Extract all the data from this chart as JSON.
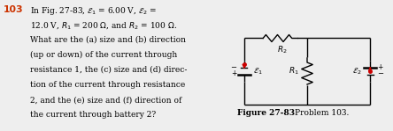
{
  "bg_color": "#eeeeee",
  "text_color": "#000000",
  "title_number_color": "#cc3300",
  "wire_color": "#000000",
  "resistor_color": "#000000",
  "arrow_color": "#cc0000",
  "label_color": "#000000",
  "circuit_bg": "#f5f5f5",
  "fig_label": "Figure 27-83",
  "fig_problem": "Problem 103.",
  "text_lines": [
    "In Fig. 27-83, $\\mathcal{E}_1$ = 6.00 V, $\\mathcal{E}_2$ =",
    "12.0 V, $R_1$ = 200 $\\Omega$, and $R_2$ = 100 $\\Omega$.",
    "What are the (a) size and (b) direction",
    "(up or down) of the current through",
    "resistance 1, the (c) size and (d) direc-",
    "tion of the current through resistance",
    "2, and the (e) size and (f) direction of",
    "the current through battery 2?"
  ]
}
